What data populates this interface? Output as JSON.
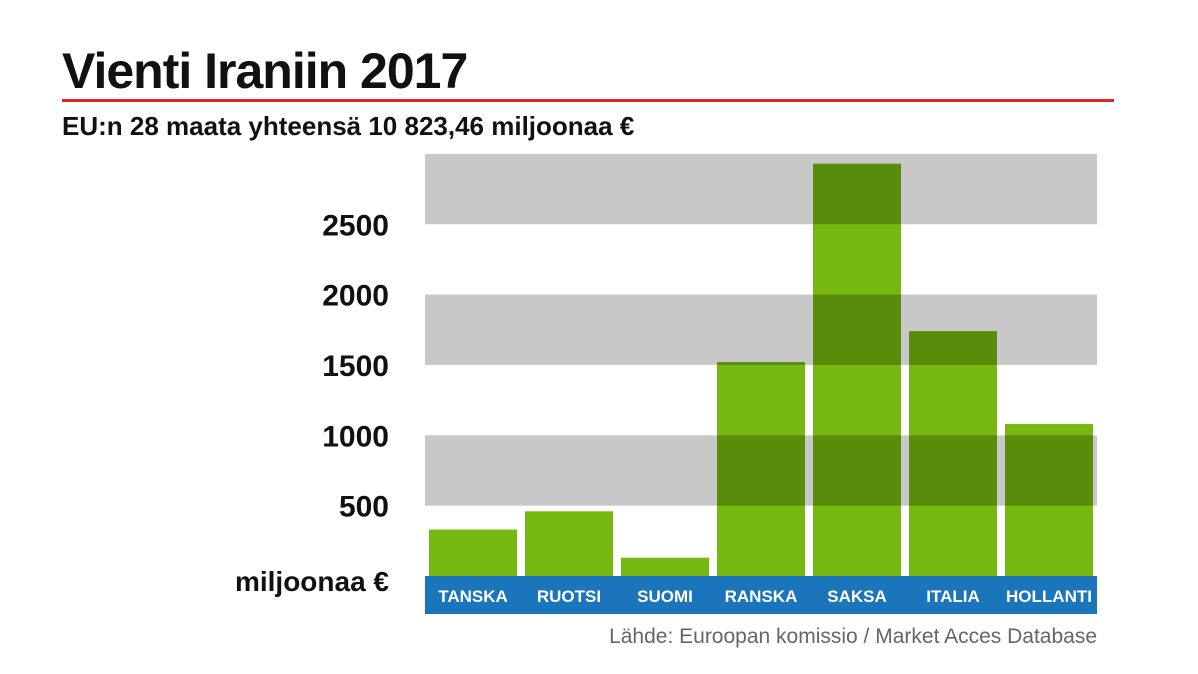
{
  "colors": {
    "accent_red": "#d9272e",
    "bar_green": "#76b80f",
    "bar_overlap": "#5a8c0c",
    "band_gray": "#c8c8c8",
    "axis_blue": "#1a75bb",
    "text_dark": "#111111",
    "source_gray": "#666666"
  },
  "chart_data": {
    "type": "bar",
    "title": "Vienti Iraniin 2017",
    "subtitle": "EU:n 28 maata yhteensä 10 823,46 miljoonaa €",
    "ylabel": "miljoonaa €",
    "categories": [
      "TANSKA",
      "RUOTSI",
      "SUOMI",
      "RANSKA",
      "SAKSA",
      "ITALIA",
      "HOLLANTI"
    ],
    "values": [
      330,
      460,
      130,
      1520,
      2930,
      1740,
      1080
    ],
    "ylim": [
      0,
      3000
    ],
    "yticks": [
      500,
      1000,
      1500,
      2000,
      2500
    ],
    "ytick_labels": [
      "500",
      "1000",
      "1500",
      "2000",
      "2500"
    ],
    "grid": "alternating horizontal bands",
    "legend": "none"
  },
  "source": "Lähde: Euroopan komissio / Market Acces Database"
}
